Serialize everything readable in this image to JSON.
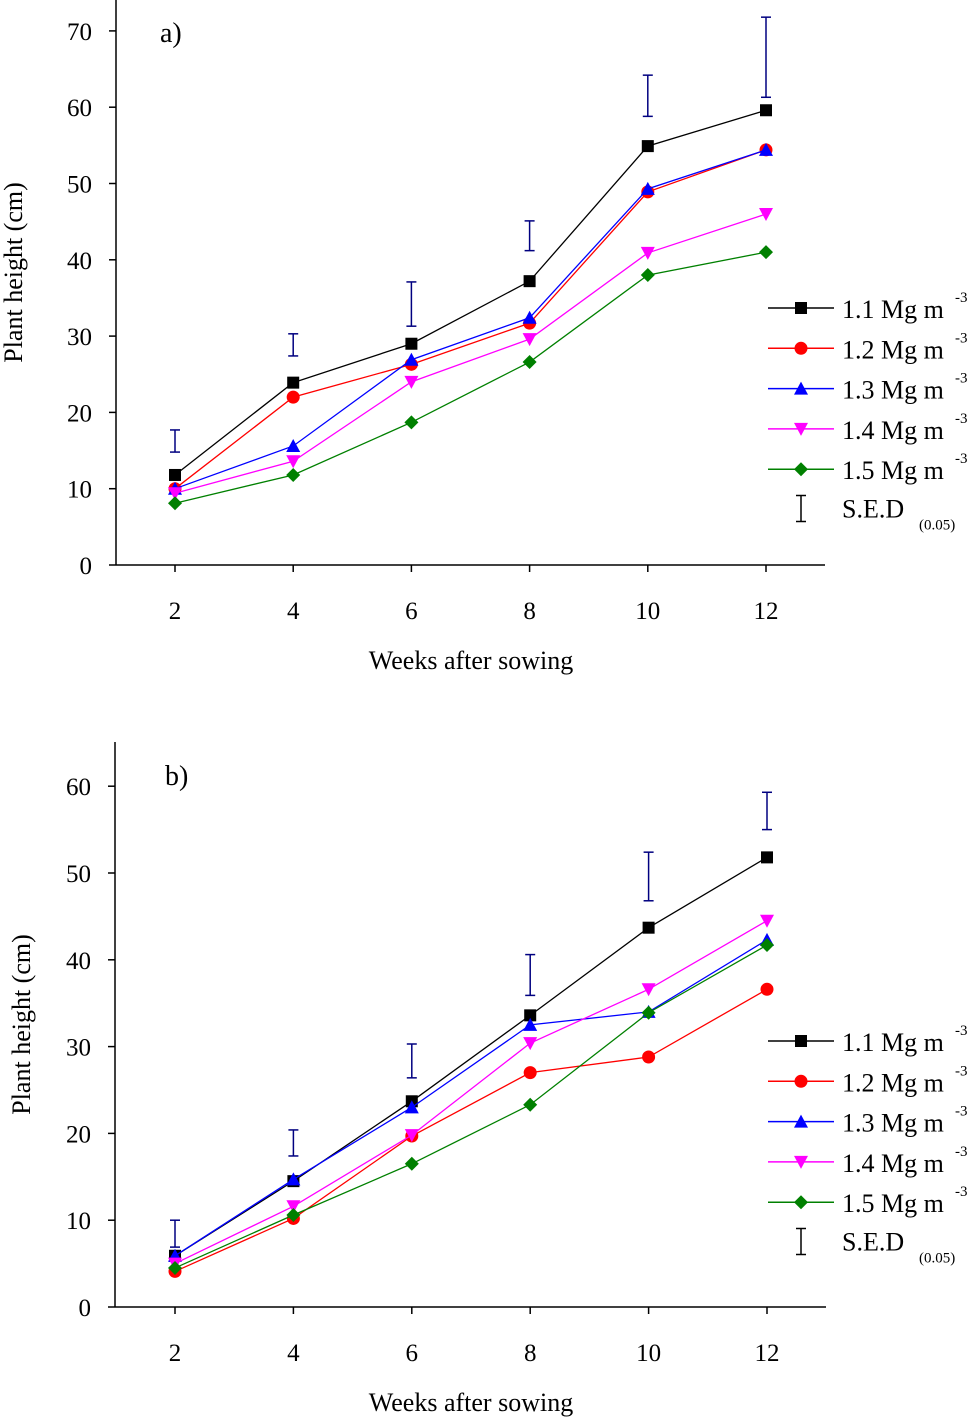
{
  "chart_data": [
    {
      "type": "line",
      "panel_label": "a)",
      "xlabel": "Weeks after sowing",
      "ylabel": "Plant height (cm)",
      "x": [
        2,
        4,
        6,
        8,
        10,
        12
      ],
      "xticks": [
        "2",
        "4",
        "6",
        "8",
        "10",
        "12"
      ],
      "yticks": [
        "0",
        "10",
        "20",
        "30",
        "40",
        "50",
        "60",
        "70"
      ],
      "ylim": [
        0,
        70
      ],
      "xlim": [
        1,
        13
      ],
      "grid": false,
      "legend_position": "right",
      "series": [
        {
          "name": "1.1 Mg m",
          "name_sup": "-3",
          "color": "#000000",
          "marker": "square",
          "values": [
            11.8,
            23.9,
            29.0,
            37.2,
            54.9,
            59.6
          ]
        },
        {
          "name": "1.2 Mg m",
          "name_sup": "-3",
          "color": "#ff0000",
          "marker": "circle",
          "values": [
            10.0,
            22.0,
            26.3,
            31.7,
            48.9,
            54.4
          ]
        },
        {
          "name": "1.3 Mg m",
          "name_sup": "-3",
          "color": "#0000ff",
          "marker": "triangle-up",
          "values": [
            10.0,
            15.6,
            26.9,
            32.4,
            49.3,
            54.4
          ]
        },
        {
          "name": "1.4 Mg m",
          "name_sup": "-3",
          "color": "#ff00ff",
          "marker": "triangle-down",
          "values": [
            9.4,
            13.6,
            24.0,
            29.6,
            40.9,
            46.0
          ]
        },
        {
          "name": "1.5 Mg m",
          "name_sup": "-3",
          "color": "#008000",
          "marker": "diamond",
          "values": [
            8.1,
            11.8,
            18.7,
            26.6,
            38.0,
            41.0
          ]
        }
      ],
      "sed": {
        "name": "S.E.D",
        "name_sub": "(0.05)",
        "color": "#000080",
        "low": [
          14.8,
          27.4,
          31.3,
          41.2,
          58.8,
          61.3
        ],
        "high": [
          17.7,
          30.3,
          37.1,
          45.1,
          64.2,
          71.8
        ]
      }
    },
    {
      "type": "line",
      "panel_label": "b)",
      "xlabel": "Weeks after sowing",
      "ylabel": "Plant height (cm)",
      "x": [
        2,
        4,
        6,
        8,
        10,
        12
      ],
      "xticks": [
        "2",
        "4",
        "6",
        "8",
        "10",
        "12"
      ],
      "yticks": [
        "0",
        "10",
        "20",
        "30",
        "40",
        "50",
        "60"
      ],
      "ylim": [
        0,
        65
      ],
      "xlim": [
        1,
        13
      ],
      "grid": false,
      "legend_position": "right",
      "series": [
        {
          "name": "1.1 Mg m",
          "name_sup": "-3",
          "color": "#000000",
          "marker": "square",
          "values": [
            5.9,
            14.5,
            23.7,
            33.6,
            43.7,
            51.8
          ]
        },
        {
          "name": "1.2 Mg m",
          "name_sup": "-3",
          "color": "#ff0000",
          "marker": "circle",
          "values": [
            4.1,
            10.2,
            19.7,
            27.0,
            28.8,
            36.6
          ]
        },
        {
          "name": "1.3 Mg m",
          "name_sup": "-3",
          "color": "#0000ff",
          "marker": "triangle-up",
          "values": [
            5.9,
            14.7,
            23.0,
            32.5,
            34.0,
            42.3
          ]
        },
        {
          "name": "1.4 Mg m",
          "name_sup": "-3",
          "color": "#ff00ff",
          "marker": "triangle-down",
          "values": [
            5.0,
            11.6,
            19.8,
            30.4,
            36.6,
            44.5
          ]
        },
        {
          "name": "1.5 Mg m",
          "name_sup": "-3",
          "color": "#008000",
          "marker": "diamond",
          "values": [
            4.5,
            10.6,
            16.5,
            23.3,
            33.9,
            41.7
          ]
        }
      ],
      "sed": {
        "name": "S.E.D",
        "name_sub": "(0.05)",
        "color": "#000080",
        "low": [
          6.9,
          17.4,
          26.4,
          35.9,
          46.8,
          55.0
        ],
        "high": [
          10.0,
          20.4,
          30.3,
          40.6,
          52.4,
          59.3
        ]
      }
    }
  ]
}
